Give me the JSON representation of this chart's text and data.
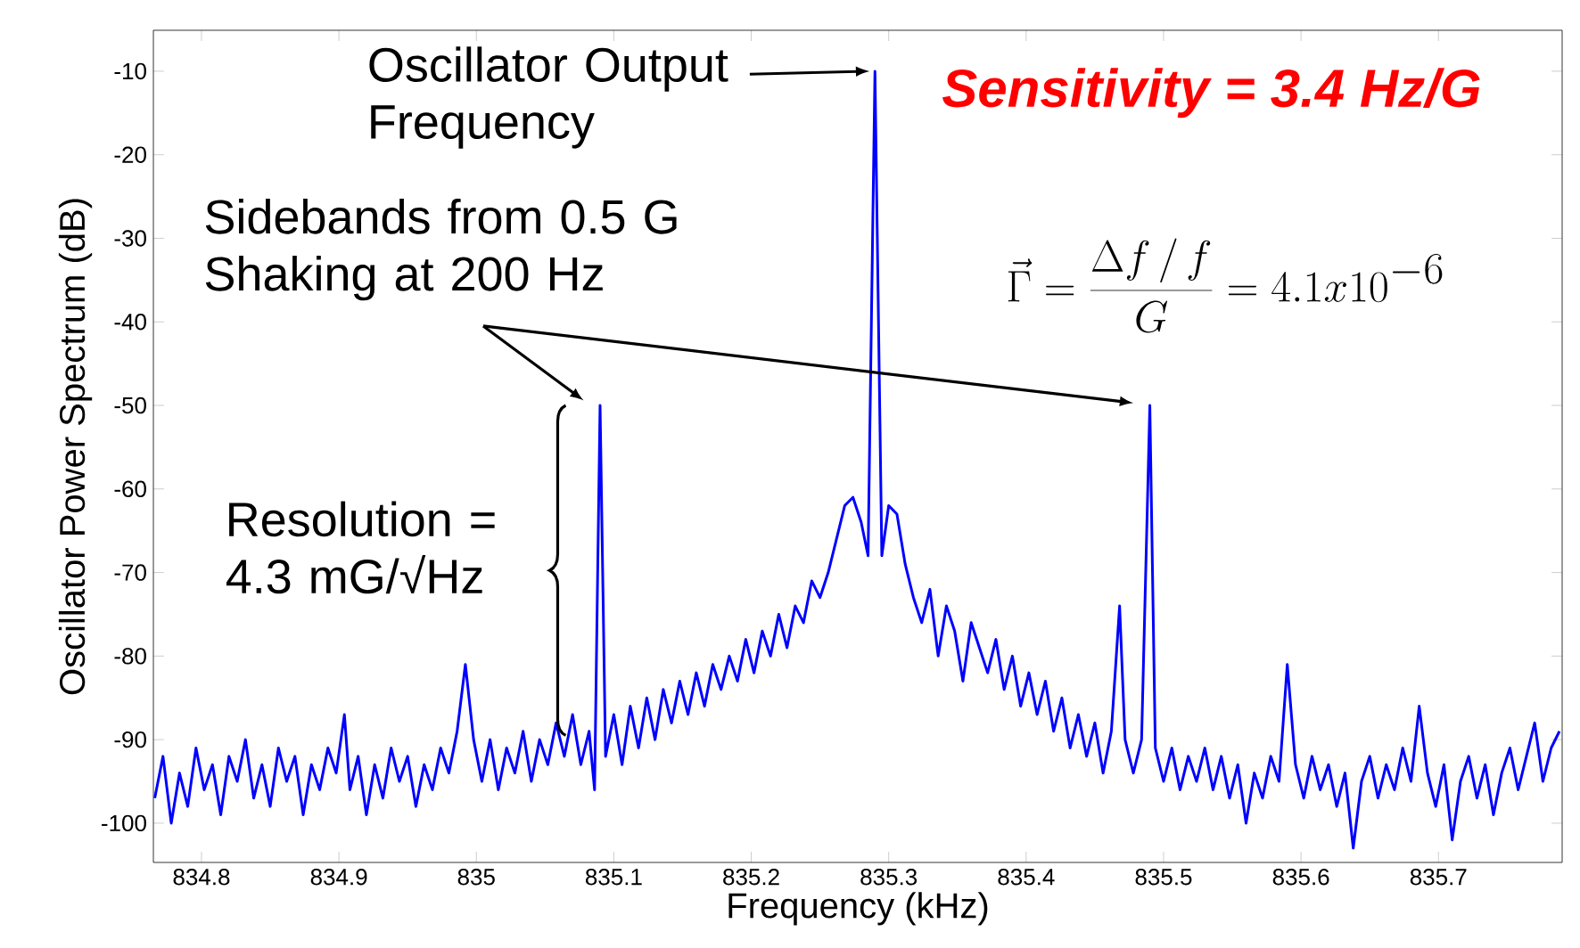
{
  "chart_data": {
    "type": "line",
    "xlabel": "Frequency (kHz)",
    "ylabel": "Oscillator Power Spectrum (dB)",
    "xlim": [
      834.765,
      835.79
    ],
    "ylim": [
      -104.7,
      -5.1
    ],
    "xticks": [
      834.8,
      834.9,
      835,
      835.1,
      835.2,
      835.3,
      835.4,
      835.5,
      835.6,
      835.7
    ],
    "yticks": [
      -10,
      -20,
      -30,
      -40,
      -50,
      -60,
      -70,
      -80,
      -90,
      -100
    ],
    "annotations": [
      "Oscillator Output Frequency",
      "Sensitivity = 3.4 Hz/G",
      "\\vec{\\Gamma} = \\frac{\\Delta f \\,/\\, f}{G} = 4.1x10^{-6}",
      "Sidebands from 0.5 G Shaking at 200 Hz",
      "Resolution = 4.3 mG/√Hz"
    ],
    "x": [
      834.766,
      834.772,
      834.778,
      834.784,
      834.79,
      834.796,
      834.802,
      834.808,
      834.814,
      834.82,
      834.826,
      834.832,
      834.838,
      834.844,
      834.85,
      834.856,
      834.862,
      834.868,
      834.874,
      834.88,
      834.886,
      834.892,
      834.898,
      834.904,
      834.908,
      834.914,
      834.92,
      834.926,
      834.932,
      834.938,
      834.944,
      834.95,
      834.956,
      834.962,
      834.968,
      834.974,
      834.98,
      834.986,
      834.992,
      834.998,
      835.004,
      835.01,
      835.016,
      835.022,
      835.028,
      835.034,
      835.04,
      835.046,
      835.052,
      835.058,
      835.064,
      835.07,
      835.076,
      835.082,
      835.086,
      835.09,
      835.094,
      835.1,
      835.106,
      835.112,
      835.118,
      835.124,
      835.13,
      835.136,
      835.142,
      835.148,
      835.154,
      835.16,
      835.166,
      835.172,
      835.178,
      835.184,
      835.19,
      835.196,
      835.202,
      835.208,
      835.214,
      835.22,
      835.226,
      835.232,
      835.238,
      835.244,
      835.25,
      835.256,
      835.262,
      835.268,
      835.274,
      835.28,
      835.285,
      835.29,
      835.295,
      835.3,
      835.306,
      835.312,
      835.318,
      835.324,
      835.33,
      835.336,
      835.342,
      835.348,
      835.354,
      835.36,
      835.366,
      835.372,
      835.378,
      835.384,
      835.39,
      835.396,
      835.402,
      835.408,
      835.414,
      835.42,
      835.426,
      835.432,
      835.438,
      835.444,
      835.45,
      835.456,
      835.462,
      835.468,
      835.472,
      835.478,
      835.484,
      835.49,
      835.494,
      835.5,
      835.506,
      835.512,
      835.518,
      835.524,
      835.53,
      835.536,
      835.542,
      835.548,
      835.554,
      835.56,
      835.566,
      835.572,
      835.578,
      835.584,
      835.59,
      835.596,
      835.602,
      835.608,
      835.614,
      835.62,
      835.626,
      835.632,
      835.638,
      835.644,
      835.65,
      835.656,
      835.662,
      835.668,
      835.674,
      835.68,
      835.686,
      835.692,
      835.698,
      835.704,
      835.71,
      835.716,
      835.722,
      835.728,
      835.734,
      835.74,
      835.746,
      835.752,
      835.758,
      835.764,
      835.77,
      835.776,
      835.782,
      835.788
    ],
    "series": [
      {
        "color": "#0000ff",
        "values": [
          -97,
          -92,
          -100,
          -94,
          -98,
          -91,
          -96,
          -93,
          -99,
          -92,
          -95,
          -90,
          -97,
          -93,
          -98,
          -91,
          -95,
          -92,
          -99,
          -93,
          -96,
          -91,
          -94,
          -87,
          -96,
          -92,
          -99,
          -93,
          -97,
          -91,
          -95,
          -92,
          -98,
          -93,
          -96,
          -91,
          -94,
          -89,
          -81,
          -90,
          -95,
          -90,
          -96,
          -91,
          -94,
          -89,
          -95,
          -90,
          -93,
          -88,
          -92,
          -87,
          -93,
          -89,
          -96,
          -50,
          -92,
          -87,
          -93,
          -86,
          -91,
          -85,
          -90,
          -84,
          -88,
          -83,
          -87,
          -82,
          -86,
          -81,
          -84,
          -80,
          -83,
          -78,
          -82,
          -77,
          -80,
          -75,
          -79,
          -74,
          -76,
          -71,
          -73,
          -70,
          -66,
          -62,
          -61,
          -64,
          -68,
          -10,
          -68,
          -62,
          -63,
          -69,
          -73,
          -76,
          -72,
          -80,
          -74,
          -77,
          -83,
          -76,
          -79,
          -82,
          -78,
          -84,
          -80,
          -86,
          -82,
          -87,
          -83,
          -89,
          -85,
          -91,
          -87,
          -92,
          -88,
          -94,
          -89,
          -74,
          -90,
          -94,
          -90,
          -50,
          -91,
          -95,
          -91,
          -96,
          -92,
          -95,
          -91,
          -96,
          -92,
          -97,
          -93,
          -100,
          -94,
          -97,
          -92,
          -95,
          -81,
          -93,
          -97,
          -92,
          -96,
          -93,
          -98,
          -94,
          -103,
          -95,
          -92,
          -97,
          -93,
          -96,
          -91,
          -95,
          -86,
          -94,
          -98,
          -93,
          -102,
          -95,
          -92,
          -97,
          -93,
          -99,
          -94,
          -91,
          -96,
          -92,
          -88,
          -95,
          -91,
          -89
        ]
      }
    ]
  }
}
